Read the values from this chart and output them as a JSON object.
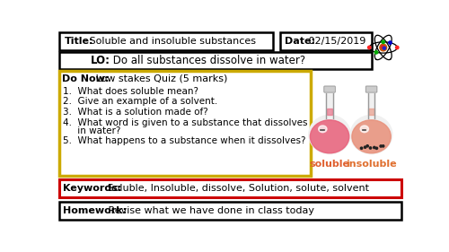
{
  "background_color": "#ffffff",
  "title_bold": "Title:",
  "title_normal": " Soluble and insoluble substances",
  "date_bold": "Date:",
  "date_normal": " 02/15/2019",
  "lo_bold": "LO:",
  "lo_normal": " Do all substances dissolve in water?",
  "do_now_bold": "Do Now:",
  "do_now_normal": " Low stakes Quiz (5 marks)",
  "questions": [
    [
      "1.",
      "  What does soluble mean?"
    ],
    [
      "2.",
      "  Give an example of a solvent."
    ],
    [
      "3.",
      "  What is a solution made of?"
    ],
    [
      "4.",
      "  What word is given to a substance that dissolves\n     in water?"
    ],
    [
      "5.",
      "  What happens to a substance when it dissolves?"
    ]
  ],
  "keywords_bold": "Keywords:",
  "keywords_normal": " Soluble, Insoluble, dissolve, Solution, solute, solvent",
  "homework_bold": "Homework:",
  "homework_normal": " Revise what we have done in class today",
  "soluble_label": "soluble",
  "insoluble_label": "insoluble",
  "soluble_body_color": "#e8607a",
  "insoluble_body_color": "#e8907a",
  "soluble_label_color": "#e06030",
  "insoluble_label_color": "#e07030",
  "flask_neck_color": "#dddddd",
  "flask_outline_color": "#aaaaaa",
  "flask_glass_color": "#f5f5f5",
  "sediment_color": "#222222",
  "highlight_color": "#ffffff",
  "border_title": "#000000",
  "border_lo": "#000000",
  "border_donow": "#ccaa00",
  "border_keywords": "#cc0000",
  "border_homework": "#000000",
  "atom_orbit_color": "#000000",
  "atom_core_color": "#cc4400",
  "atom_electrons": [
    "#ff0000",
    "#0000cc",
    "#00aa00",
    "#ff0000"
  ],
  "title_font": 8,
  "lo_font": 8.5,
  "q_font": 7.5,
  "kw_font": 8,
  "hw_font": 8
}
